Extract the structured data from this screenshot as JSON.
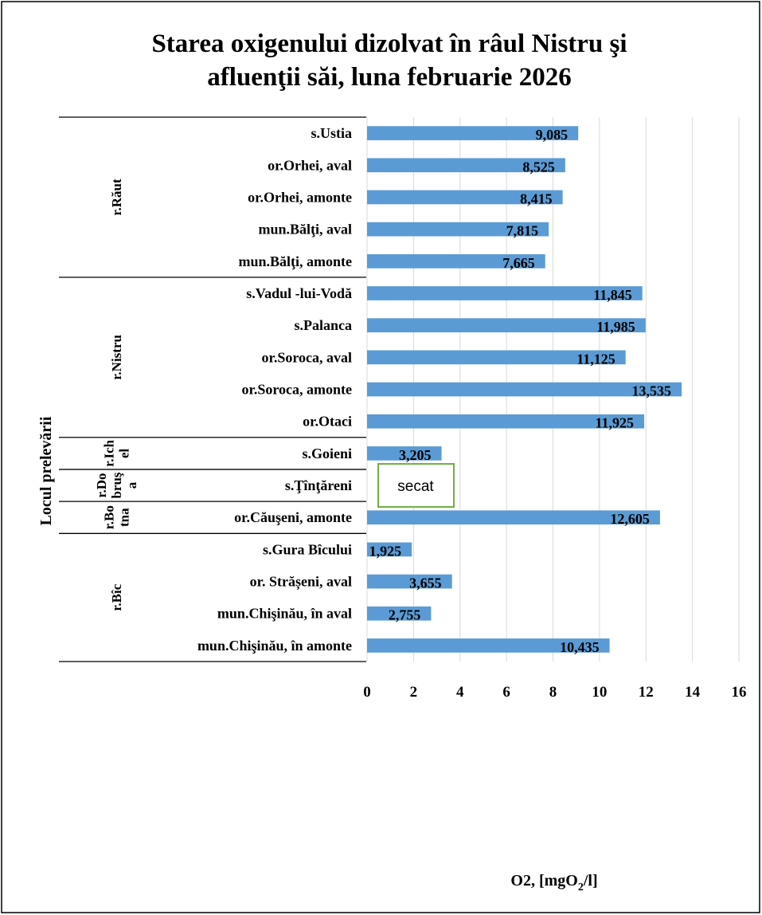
{
  "chart_data": {
    "type": "bar",
    "orientation": "horizontal",
    "title_lines": [
      "Starea oxigenului dizolvat în râul Nistru şi",
      "afluenţii săi, luna februarie 2026"
    ],
    "xlabel": "O2, [mgO",
    "xlabel_sub": "2",
    "xlabel_end": "/l]",
    "ylabel": "Locul prelevării",
    "xlim": [
      0,
      16
    ],
    "xticks": [
      "0",
      "2",
      "4",
      "6",
      "8",
      "10",
      "12",
      "14",
      "16"
    ],
    "grid": true,
    "bar_color": "#5b9bd5",
    "groups": [
      {
        "lines": [
          "r.Răut"
        ],
        "count": 5
      },
      {
        "lines": [
          "r.Nistru"
        ],
        "count": 5
      },
      {
        "lines": [
          "r.Ich",
          "el"
        ],
        "count": 1
      },
      {
        "lines": [
          "r.Do",
          "bruş",
          "a"
        ],
        "count": 1
      },
      {
        "lines": [
          "r.Bo",
          "tna"
        ],
        "count": 1
      },
      {
        "lines": [
          "r.Bîc"
        ],
        "count": 4
      }
    ],
    "categories": [
      "s.Ustia",
      "or.Orhei, aval",
      "or.Orhei, amonte",
      "mun.Bălţi, aval",
      "mun.Bălţi, amonte",
      "s.Vadul -lui-Vodă",
      "s.Palanca",
      "or.Soroca, aval",
      "or.Soroca, amonte",
      "or.Otaci",
      "s.Goieni",
      "s.Ţînţăreni",
      "or.Căuşeni, amonte",
      "s.Gura Bîcului",
      "or. Strășeni, aval",
      "mun.Chişinău, în aval",
      "mun.Chişinău, în amonte"
    ],
    "values": [
      9.085,
      8.525,
      8.415,
      7.815,
      7.665,
      11.845,
      11.985,
      11.125,
      13.535,
      11.925,
      3.205,
      null,
      12.605,
      1.925,
      3.655,
      2.755,
      10.435
    ],
    "value_labels": [
      "9,085",
      "8,525",
      "8,415",
      "7,815",
      "7,665",
      "11,845",
      "11,985",
      "11,125",
      "13,535",
      "11,925",
      "3,205",
      "",
      "12,605",
      "1,925",
      "3,655",
      "2,755",
      "10,435"
    ],
    "annotations": [
      {
        "category": "s.Ţînţăreni",
        "text": "secat",
        "border_color": "#70ad47"
      }
    ]
  }
}
